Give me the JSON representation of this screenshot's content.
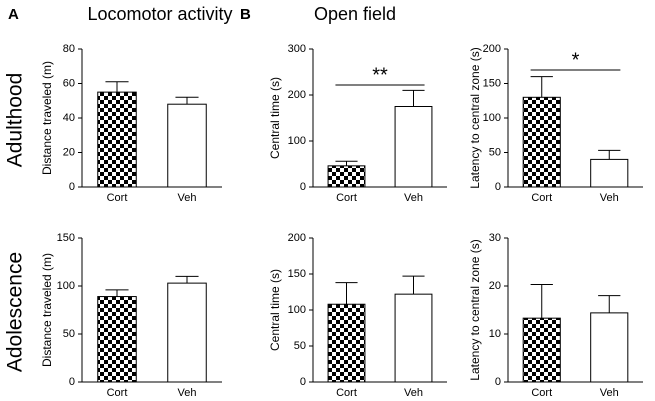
{
  "figure": {
    "panel_labels": [
      "A",
      "B"
    ],
    "section_titles": [
      "Locomotor activity",
      "Open field"
    ],
    "row_labels": [
      "Adulthood",
      "Adolescence"
    ]
  },
  "chart_data": [
    {
      "type": "bar",
      "ylabel": "Distance traveled (m)",
      "categories": [
        "Cort",
        "Veh"
      ],
      "values": [
        55,
        48
      ],
      "errors": [
        6,
        4
      ],
      "patterns": [
        "checker",
        "none"
      ],
      "ylim": [
        0,
        80
      ],
      "yticks": [
        0,
        20,
        40,
        60,
        80
      ]
    },
    {
      "type": "bar",
      "ylabel": "Central time (s)",
      "categories": [
        "Cort",
        "Veh"
      ],
      "values": [
        46,
        175
      ],
      "errors": [
        10,
        35
      ],
      "patterns": [
        "checker",
        "none"
      ],
      "ylim": [
        0,
        300
      ],
      "yticks": [
        0,
        100,
        200,
        300
      ],
      "annotation": "**"
    },
    {
      "type": "bar",
      "ylabel": "Latency to central zone (s)",
      "categories": [
        "Cort",
        "Veh"
      ],
      "values": [
        130,
        40
      ],
      "errors": [
        30,
        13
      ],
      "patterns": [
        "checker",
        "none"
      ],
      "ylim": [
        0,
        200
      ],
      "yticks": [
        0,
        50,
        100,
        150,
        200
      ],
      "annotation": "*"
    },
    {
      "type": "bar",
      "ylabel": "Distance traveled (m)",
      "categories": [
        "Cort",
        "Veh"
      ],
      "values": [
        89,
        103
      ],
      "errors": [
        7,
        7
      ],
      "patterns": [
        "checker",
        "none"
      ],
      "ylim": [
        0,
        150
      ],
      "yticks": [
        0,
        50,
        100,
        150
      ]
    },
    {
      "type": "bar",
      "ylabel": "Central time (s)",
      "categories": [
        "Cort",
        "Veh"
      ],
      "values": [
        108,
        122
      ],
      "errors": [
        30,
        25
      ],
      "patterns": [
        "checker",
        "none"
      ],
      "ylim": [
        0,
        200
      ],
      "yticks": [
        0,
        50,
        100,
        150,
        200
      ]
    },
    {
      "type": "bar",
      "ylabel": "Latency to central zone (s)",
      "categories": [
        "Cort",
        "Veh"
      ],
      "values": [
        13.3,
        14.4
      ],
      "errors": [
        7,
        3.6
      ],
      "patterns": [
        "checker",
        "none"
      ],
      "ylim": [
        0,
        30
      ],
      "yticks": [
        0,
        10,
        20,
        30
      ]
    }
  ]
}
